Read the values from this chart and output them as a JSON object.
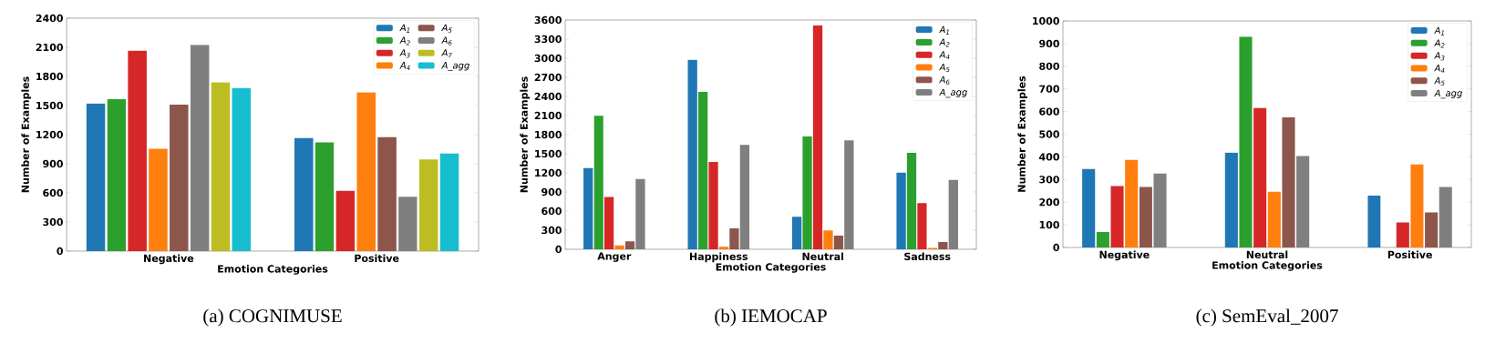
{
  "chart_data": [
    {
      "type": "bar",
      "title": "(a) COGNIMUSE",
      "xlabel": "Emotion Categories",
      "ylabel": "Number of Examples",
      "categories": [
        "Negative",
        "Positive"
      ],
      "ylim": [
        0,
        2400
      ],
      "yticks": [
        0,
        300,
        600,
        900,
        1200,
        1500,
        1800,
        2100,
        2400
      ],
      "legend": "top right",
      "series": [
        {
          "name": "A$_{1}$",
          "color": "#1f77b4",
          "values": [
            1520,
            1165
          ]
        },
        {
          "name": "A$_{2}$",
          "color": "#2ca02c",
          "values": [
            1565,
            1120
          ]
        },
        {
          "name": "A$_{3}$",
          "color": "#d62728",
          "values": [
            2065,
            620
          ]
        },
        {
          "name": "A$_{4}$",
          "color": "#ff7f0e",
          "values": [
            1055,
            1635
          ]
        },
        {
          "name": "A$_{5}$",
          "color": "#8c564b",
          "values": [
            1510,
            1175
          ]
        },
        {
          "name": "A$_{6}$",
          "color": "#7f7f7f",
          "values": [
            2125,
            560
          ]
        },
        {
          "name": "A$_{7}$",
          "color": "#bcbd22",
          "values": [
            1740,
            945
          ]
        },
        {
          "name": "A_agg",
          "color": "#17becf",
          "values": [
            1680,
            1005
          ]
        }
      ]
    },
    {
      "type": "bar",
      "title": "(b) IEMOCAP",
      "xlabel": "Emotion Categories",
      "ylabel": "Number of Examples",
      "categories": [
        "Anger",
        "Happiness",
        "Neutral",
        "Sadness"
      ],
      "ylim": [
        0,
        3600
      ],
      "yticks": [
        0,
        300,
        600,
        900,
        1200,
        1500,
        1800,
        2100,
        2400,
        2700,
        3000,
        3300,
        3600
      ],
      "legend": "top right",
      "series": [
        {
          "name": "A$_{1}$",
          "color": "#1f77b4",
          "values": [
            1275,
            2975,
            510,
            1205
          ]
        },
        {
          "name": "A$_{2}$",
          "color": "#2ca02c",
          "values": [
            2095,
            2470,
            1770,
            1515
          ]
        },
        {
          "name": "A$_{4}$",
          "color": "#d62728",
          "values": [
            820,
            1370,
            3515,
            725
          ]
        },
        {
          "name": "A$_{5}$",
          "color": "#ff7f0e",
          "values": [
            60,
            40,
            295,
            20
          ]
        },
        {
          "name": "A$_{6}$",
          "color": "#8c564b",
          "values": [
            125,
            330,
            215,
            115
          ]
        },
        {
          "name": "A_agg",
          "color": "#7f7f7f",
          "values": [
            1105,
            1640,
            1710,
            1090
          ]
        }
      ]
    },
    {
      "type": "bar",
      "title": "(c) SemEval_2007",
      "xlabel": "Emotion Categories",
      "ylabel": "Number of Examples",
      "categories": [
        "Negative",
        "Neutral",
        "Positive"
      ],
      "ylim": [
        0,
        1000
      ],
      "yticks": [
        0,
        100,
        200,
        300,
        400,
        500,
        600,
        700,
        800,
        900,
        1000
      ],
      "legend": "top right",
      "series": [
        {
          "name": "A$_{1}$",
          "color": "#1f77b4",
          "values": [
            346,
            419,
            229
          ]
        },
        {
          "name": "A$_{2}$",
          "color": "#2ca02c",
          "values": [
            68,
            931,
            0
          ]
        },
        {
          "name": "A$_{3}$",
          "color": "#d62728",
          "values": [
            271,
            616,
            110
          ]
        },
        {
          "name": "A$_{4}$",
          "color": "#ff7f0e",
          "values": [
            387,
            246,
            366
          ]
        },
        {
          "name": "A$_{5}$",
          "color": "#8c564b",
          "values": [
            267,
            574,
            155
          ]
        },
        {
          "name": "A_agg",
          "color": "#7f7f7f",
          "values": [
            326,
            404,
            267
          ]
        }
      ]
    }
  ]
}
